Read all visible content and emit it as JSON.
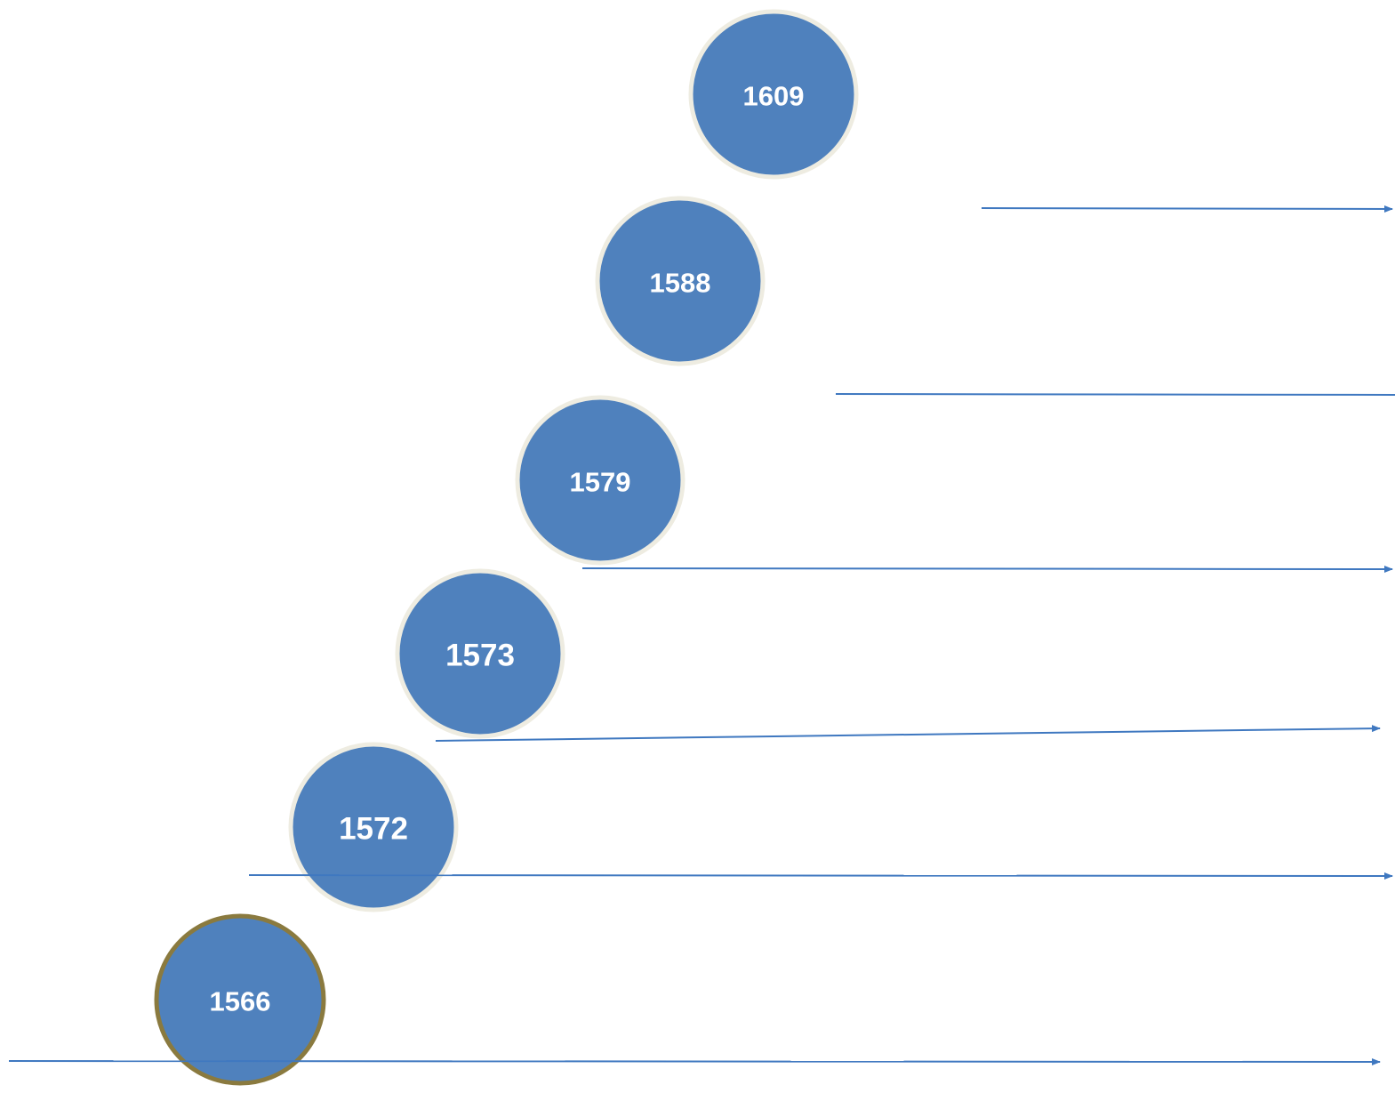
{
  "timeline": {
    "colors": {
      "circle_fill": "#4f81bd",
      "circle_border": "#eeece1",
      "highlight_border": "#8a7a3f",
      "arrow_line": "#3f78c0",
      "label_text": "#ffffff"
    },
    "years": [
      {
        "label": "1566",
        "highlighted": true
      },
      {
        "label": "1572",
        "highlighted": false
      },
      {
        "label": "1573",
        "highlighted": false
      },
      {
        "label": "1579",
        "highlighted": false
      },
      {
        "label": "1588",
        "highlighted": false
      },
      {
        "label": "1609",
        "highlighted": false
      }
    ]
  }
}
